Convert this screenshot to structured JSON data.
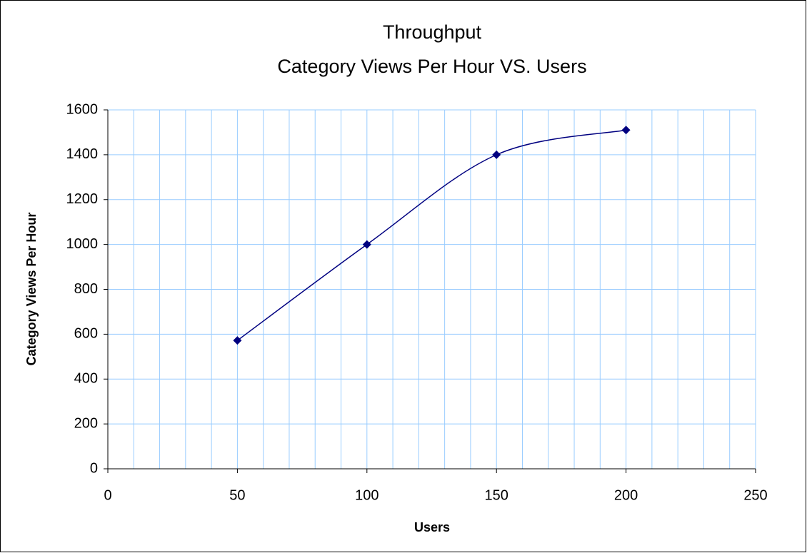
{
  "chart_data": {
    "type": "line",
    "title": [
      "Throughput",
      "Category Views Per Hour VS. Users"
    ],
    "x_label": "Users",
    "y_label": "Category Views Per Hour",
    "x": [
      50,
      100,
      150,
      200
    ],
    "values": [
      572,
      1000,
      1400,
      1510
    ],
    "color": "#000080",
    "smooth": true,
    "marker": "diamond",
    "xlim": [
      0,
      250
    ],
    "xticks": [
      0,
      50,
      100,
      150,
      200,
      250
    ],
    "xminorticks": [
      0,
      10,
      20,
      30,
      40,
      50,
      60,
      70,
      80,
      90,
      100,
      110,
      120,
      130,
      140,
      150,
      160,
      170,
      180,
      190,
      200,
      210,
      220,
      230,
      240,
      250
    ],
    "ylim": [
      0,
      1600
    ],
    "yticks": [
      0,
      200,
      400,
      600,
      800,
      1000,
      1200,
      1400,
      1600
    ],
    "grid": true,
    "grid_color": "#99ccff"
  }
}
